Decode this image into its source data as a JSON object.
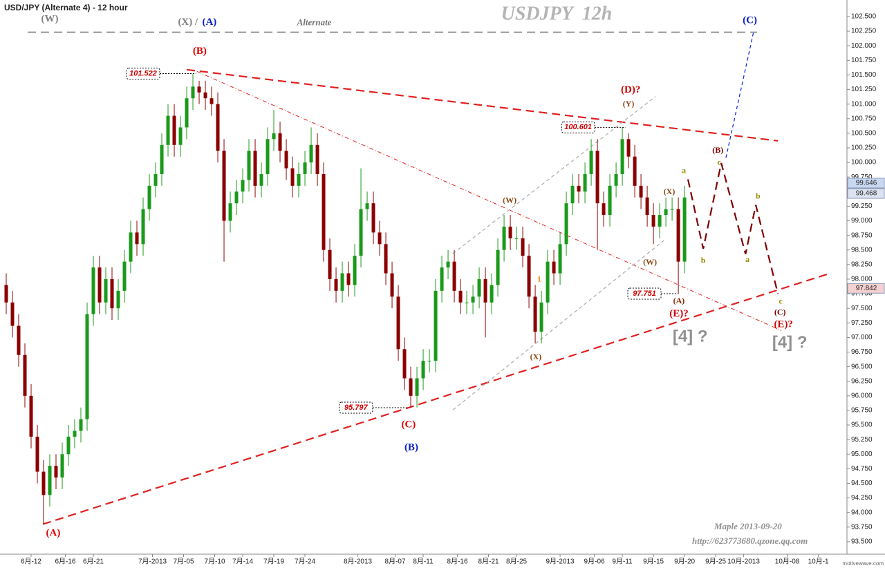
{
  "chart_data": {
    "type": "candlestick",
    "title": "USD/JPY (Alternate 4) - 12 hour",
    "subtitle": "USDJPY  12h",
    "footer": "motivewave.com",
    "up_color": "#1a9a1a",
    "down_color": "#8b0000",
    "xlim": [
      -2,
      270.2
    ],
    "ylim": [
      93.286,
      102.784
    ],
    "xticks": [
      {
        "value": 8,
        "label": "6月-12"
      },
      {
        "value": 19,
        "label": "6月-16"
      },
      {
        "value": 28,
        "label": "6月-21"
      },
      {
        "value": 47,
        "label": "7月-2013"
      },
      {
        "value": 57,
        "label": "7月-05"
      },
      {
        "value": 67,
        "label": "7月-10"
      },
      {
        "value": 76,
        "label": "7月-14"
      },
      {
        "value": 86,
        "label": "7月-19"
      },
      {
        "value": 96,
        "label": "7月-24"
      },
      {
        "value": 113,
        "label": "8月-2013"
      },
      {
        "value": 125,
        "label": "8月-07"
      },
      {
        "value": 134,
        "label": "8月-11"
      },
      {
        "value": 145,
        "label": "8月-16"
      },
      {
        "value": 155,
        "label": "8月-21"
      },
      {
        "value": 164,
        "label": "8月-25"
      },
      {
        "value": 178,
        "label": "9月-2013"
      },
      {
        "value": 189,
        "label": "9月-06"
      },
      {
        "value": 198,
        "label": "9月-11"
      },
      {
        "value": 208,
        "label": "9月-15"
      },
      {
        "value": 218,
        "label": "9月-20"
      },
      {
        "value": 228,
        "label": "9月-25"
      },
      {
        "value": 237,
        "label": "10月-2013"
      },
      {
        "value": 251,
        "label": "10月-08"
      },
      {
        "value": 261,
        "label": "10月-1"
      }
    ],
    "yticks": [
      {
        "value": 93.5,
        "label": "93.500"
      },
      {
        "value": 93.75,
        "label": "93.750"
      },
      {
        "value": 94,
        "label": "94.000"
      },
      {
        "value": 94.25,
        "label": "94.250"
      },
      {
        "value": 94.5,
        "label": "94.500"
      },
      {
        "value": 94.75,
        "label": "94.750"
      },
      {
        "value": 95,
        "label": "95.000"
      },
      {
        "value": 95.25,
        "label": "95.250"
      },
      {
        "value": 95.5,
        "label": "95.500"
      },
      {
        "value": 95.75,
        "label": "95.750"
      },
      {
        "value": 96,
        "label": "96.000"
      },
      {
        "value": 96.25,
        "label": "96.250"
      },
      {
        "value": 96.5,
        "label": "96.500"
      },
      {
        "value": 96.75,
        "label": "96.750"
      },
      {
        "value": 97,
        "label": "97.000"
      },
      {
        "value": 97.25,
        "label": "97.250"
      },
      {
        "value": 97.5,
        "label": "97.500"
      },
      {
        "value": 97.75,
        "label": "97.750"
      },
      {
        "value": 98,
        "label": "98.000"
      },
      {
        "value": 98.25,
        "label": "98.250"
      },
      {
        "value": 98.5,
        "label": "98.500"
      },
      {
        "value": 98.75,
        "label": "98.750"
      },
      {
        "value": 99,
        "label": "99.000"
      },
      {
        "value": 99.25,
        "label": "99.250"
      },
      {
        "value": 99.5,
        "label": "99.500"
      },
      {
        "value": 99.75,
        "label": "99.750"
      },
      {
        "value": 100,
        "label": "100.000"
      },
      {
        "value": 100.25,
        "label": "100.250"
      },
      {
        "value": 100.5,
        "label": "100.500"
      },
      {
        "value": 100.75,
        "label": "100.750"
      },
      {
        "value": 101,
        "label": "101.000"
      },
      {
        "value": 101.25,
        "label": "101.250"
      },
      {
        "value": 101.5,
        "label": "101.500"
      },
      {
        "value": 101.75,
        "label": "101.750"
      },
      {
        "value": 102,
        "label": "102.000"
      },
      {
        "value": 102.25,
        "label": "102.250"
      },
      {
        "value": 102.5,
        "label": "102.500"
      }
    ],
    "x": [
      0,
      2,
      4,
      6,
      8,
      10,
      12,
      14,
      16,
      18,
      20,
      22,
      24,
      26,
      28,
      30,
      32,
      34,
      36,
      38,
      40,
      42,
      44,
      46,
      48,
      50,
      52,
      54,
      56,
      58,
      60,
      62,
      64,
      66,
      68,
      70,
      72,
      74,
      76,
      78,
      80,
      82,
      84,
      86,
      88,
      90,
      92,
      94,
      96,
      98,
      100,
      102,
      104,
      106,
      108,
      110,
      112,
      114,
      116,
      118,
      120,
      122,
      124,
      126,
      128,
      130,
      132,
      134,
      136,
      138,
      140,
      142,
      144,
      146,
      148,
      150,
      152,
      154,
      156,
      158,
      160,
      162,
      164,
      166,
      168,
      170,
      172,
      174,
      176,
      178,
      180,
      182,
      184,
      186,
      188,
      190,
      192,
      194,
      196,
      198,
      200,
      202,
      204,
      206,
      208,
      210,
      212,
      214,
      216,
      218
    ],
    "open": [
      97.9,
      97.6,
      97.2,
      96.7,
      96.0,
      95.3,
      94.7,
      94.3,
      94.8,
      94.6,
      95.0,
      95.3,
      95.4,
      95.6,
      97.4,
      98.2,
      97.6,
      98.0,
      97.5,
      97.8,
      98.3,
      98.8,
      98.6,
      99.2,
      99.6,
      99.8,
      100.3,
      100.8,
      100.3,
      100.6,
      101.1,
      101.3,
      101.2,
      101.1,
      101.0,
      100.2,
      99.0,
      99.3,
      99.5,
      99.7,
      100.2,
      99.6,
      99.8,
      100.4,
      100.5,
      100.2,
      99.9,
      99.6,
      99.8,
      100.0,
      100.3,
      99.8,
      98.5,
      98.0,
      97.8,
      98.1,
      97.9,
      98.4,
      99.2,
      99.3,
      98.8,
      98.6,
      98.1,
      97.7,
      96.8,
      96.3,
      96.0,
      96.3,
      96.6,
      96.6,
      97.8,
      98.2,
      98.3,
      97.8,
      97.6,
      97.6,
      97.7,
      98.0,
      97.6,
      97.9,
      98.5,
      98.9,
      98.7,
      98.7,
      98.4,
      97.7,
      97.1,
      97.6,
      98.3,
      98.1,
      98.6,
      99.3,
      99.6,
      99.5,
      99.8,
      100.2,
      99.3,
      99.1,
      99.6,
      99.8,
      100.4,
      100.1,
      99.6,
      99.4,
      99.1,
      98.9,
      99.1,
      99.2,
      99.2,
      98.3
    ],
    "high": [
      98.1,
      97.8,
      97.4,
      96.9,
      96.2,
      95.5,
      94.9,
      95.0,
      95.0,
      95.2,
      95.5,
      95.6,
      95.8,
      97.6,
      98.4,
      98.4,
      98.2,
      98.2,
      98.0,
      98.5,
      99.0,
      99.0,
      99.4,
      99.8,
      100.0,
      100.5,
      101.0,
      101.0,
      100.8,
      101.3,
      101.522,
      101.4,
      101.4,
      101.3,
      101.2,
      100.4,
      99.5,
      99.7,
      99.9,
      100.4,
      100.4,
      100.0,
      100.6,
      100.9,
      100.7,
      100.4,
      100.1,
      100.0,
      100.2,
      100.6,
      100.5,
      100.0,
      98.7,
      98.2,
      98.3,
      98.3,
      98.6,
      99.9,
      99.5,
      99.5,
      99.0,
      98.8,
      98.3,
      97.9,
      97.0,
      96.5,
      96.5,
      96.8,
      96.8,
      98.0,
      98.4,
      98.5,
      98.5,
      98.0,
      97.8,
      97.9,
      98.2,
      98.2,
      98.1,
      98.7,
      99.1,
      99.1,
      98.9,
      98.9,
      98.6,
      97.9,
      97.8,
      98.5,
      98.5,
      98.8,
      99.5,
      99.8,
      99.8,
      100.0,
      100.4,
      100.4,
      99.5,
      99.8,
      100.0,
      100.601,
      100.5,
      100.3,
      99.8,
      99.6,
      99.3,
      99.3,
      99.4,
      99.4,
      99.4,
      99.6
    ],
    "low": [
      97.4,
      97.0,
      96.5,
      95.8,
      95.1,
      94.5,
      93.8,
      94.1,
      94.4,
      94.4,
      94.8,
      95.1,
      95.2,
      95.4,
      97.2,
      97.4,
      97.4,
      97.3,
      97.3,
      97.6,
      98.1,
      98.4,
      98.4,
      99.0,
      99.4,
      99.6,
      100.1,
      100.1,
      100.1,
      100.4,
      100.9,
      101.0,
      100.9,
      100.8,
      100.0,
      98.3,
      98.8,
      99.1,
      99.3,
      99.5,
      99.4,
      99.4,
      99.6,
      100.2,
      100.0,
      99.7,
      99.4,
      99.4,
      99.6,
      99.8,
      99.6,
      98.3,
      97.8,
      97.6,
      97.6,
      97.7,
      97.7,
      98.2,
      99.0,
      98.6,
      98.4,
      97.9,
      97.5,
      96.6,
      96.1,
      95.797,
      95.8,
      96.1,
      96.4,
      96.4,
      97.6,
      98.0,
      97.6,
      97.4,
      97.4,
      97.4,
      97.5,
      97.0,
      97.4,
      97.7,
      98.3,
      98.5,
      98.5,
      98.2,
      97.5,
      96.9,
      96.9,
      97.4,
      97.9,
      97.9,
      98.4,
      99.1,
      99.3,
      99.3,
      99.6,
      98.5,
      98.9,
      98.9,
      99.4,
      99.6,
      99.9,
      99.4,
      99.2,
      98.9,
      98.6,
      98.7,
      98.9,
      99.0,
      97.751,
      98.1
    ],
    "close": [
      97.6,
      97.2,
      96.7,
      96.0,
      95.3,
      94.7,
      94.3,
      94.8,
      94.6,
      95.0,
      95.3,
      95.4,
      95.6,
      97.4,
      98.2,
      97.6,
      98.0,
      97.5,
      97.8,
      98.3,
      98.8,
      98.6,
      99.2,
      99.6,
      99.8,
      100.3,
      100.8,
      100.3,
      100.6,
      101.1,
      101.3,
      101.2,
      101.1,
      101.0,
      100.2,
      99.0,
      99.3,
      99.5,
      99.7,
      100.2,
      99.6,
      99.8,
      100.4,
      100.5,
      100.2,
      99.9,
      99.6,
      99.8,
      100.0,
      100.3,
      99.8,
      98.5,
      98.0,
      97.8,
      98.1,
      97.9,
      98.4,
      99.2,
      99.3,
      98.8,
      98.6,
      98.1,
      97.7,
      96.8,
      96.3,
      96.0,
      96.3,
      96.6,
      96.6,
      97.8,
      98.2,
      98.3,
      97.8,
      97.6,
      97.6,
      97.7,
      98.0,
      97.6,
      97.9,
      98.5,
      98.9,
      98.7,
      98.7,
      98.4,
      97.7,
      97.1,
      97.6,
      98.3,
      98.1,
      98.6,
      99.3,
      99.6,
      99.5,
      99.8,
      100.2,
      99.3,
      99.1,
      99.6,
      99.8,
      100.4,
      100.1,
      99.6,
      99.4,
      99.1,
      98.9,
      99.1,
      99.2,
      99.2,
      98.3,
      99.4
    ],
    "price_tags": [
      {
        "value": 99.646,
        "color": "#c8d8f0"
      },
      {
        "value": 99.468,
        "color": "#dde3f0"
      },
      {
        "value": 97.842,
        "color": "#f5d0d0"
      }
    ],
    "price_boxes": [
      {
        "label": "101.522",
        "value": 101.522,
        "x": 44,
        "to": 61
      },
      {
        "label": "100.601",
        "value": 100.601,
        "x": 183.8,
        "to": 199
      },
      {
        "label": "95.797",
        "value": 95.797,
        "x": 112.4,
        "to": 129
      },
      {
        "label": "97.751",
        "value": 97.751,
        "x": 205.1,
        "to": 216
      }
    ],
    "lines": [
      {
        "style": "thick-dash",
        "color": "#e02020",
        "x": [
          58,
          248
        ],
        "y": [
          101.59,
          100.37
        ]
      },
      {
        "style": "thick-dash",
        "color": "#e02020",
        "x": [
          11.8,
          264.2
        ],
        "y": [
          93.8,
          98.09
        ]
      },
      {
        "style": "dash-dot",
        "color": "#e02020",
        "x": [
          61.3,
          249.1
        ],
        "y": [
          101.56,
          97.12
        ]
      },
      {
        "style": "dash",
        "color": "#b0b0b0",
        "x": [
          143.6,
          208.7
        ],
        "y": [
          98.44,
          101.13
        ]
      },
      {
        "style": "dash",
        "color": "#b0b0b0",
        "x": [
          143.6,
          211.3
        ],
        "y": [
          95.76,
          98.66
        ]
      },
      {
        "style": "thick-dash",
        "color": "#a0a0a0",
        "x": [
          6.9,
          241.3
        ],
        "y": [
          102.23,
          102.23
        ]
      },
      {
        "style": "dash",
        "color": "#1030e0",
        "x": [
          231.3,
          240.2
        ],
        "y": [
          100.08,
          102.24
        ]
      },
      {
        "style": "thick-dash",
        "color": "#800000",
        "x": [
          219.1,
          224,
          229.8,
          237.6,
          240.9,
          248
        ],
        "y": [
          99.71,
          98.52,
          99.99,
          98.43,
          99.27,
          97.75
        ]
      }
    ],
    "annotations": [
      {
        "text": "(W)",
        "x": 14,
        "y": 102.45,
        "color": "#808080",
        "style": "wave"
      },
      {
        "text": "(X) /",
        "x": 58.4,
        "y": 102.4,
        "color": "#808080",
        "style": "wave"
      },
      {
        "text": "(A)",
        "x": 65.3,
        "y": 102.4,
        "color": "#0a22c8",
        "style": "wave"
      },
      {
        "text": "Alternate",
        "x": 99,
        "y": 102.39,
        "color": "#707070",
        "style": "note"
      },
      {
        "text": "(C)",
        "x": 239,
        "y": 102.43,
        "color": "#0a22c8",
        "style": "wave"
      },
      {
        "text": "(B)",
        "x": 62.2,
        "y": 101.9,
        "color": "#e00000",
        "style": "wave"
      },
      {
        "text": "(D)?",
        "x": 200.7,
        "y": 101.24,
        "color": "#d00000",
        "style": "wave"
      },
      {
        "text": "(Y)",
        "x": 200,
        "y": 100.99,
        "color": "#8b4513",
        "style": "small"
      },
      {
        "text": "(W)",
        "x": 161.8,
        "y": 99.34,
        "color": "#8b4513",
        "style": "small"
      },
      {
        "text": "1",
        "x": 171.3,
        "y": 97.99,
        "color": "#ff8c00",
        "style": "small"
      },
      {
        "text": "(X)",
        "x": 170.2,
        "y": 96.66,
        "color": "#8b4513",
        "style": "small"
      },
      {
        "text": "(W)",
        "x": 206.9,
        "y": 98.28,
        "color": "#8b4513",
        "style": "small"
      },
      {
        "text": "(X)",
        "x": 213.1,
        "y": 99.49,
        "color": "#8b4513",
        "style": "small"
      },
      {
        "text": "(A)",
        "x": 216.2,
        "y": 97.62,
        "color": "#8b2500",
        "style": "small"
      },
      {
        "text": "(E)?",
        "x": 216.2,
        "y": 97.4,
        "color": "#d00000",
        "style": "wave"
      },
      {
        "text": "[4] ?",
        "x": 219.8,
        "y": 97.0,
        "color": "#909090",
        "style": "big"
      },
      {
        "text": "(C)",
        "x": 129.3,
        "y": 95.5,
        "color": "#e00000",
        "style": "wave"
      },
      {
        "text": "(B)",
        "x": 130.2,
        "y": 95.11,
        "color": "#0a22c8",
        "style": "wave"
      },
      {
        "text": "(A)",
        "x": 15.1,
        "y": 93.64,
        "color": "#e00000",
        "style": "wave"
      },
      {
        "text": "a",
        "x": 217.8,
        "y": 99.85,
        "color": "#9a8a00",
        "style": "small"
      },
      {
        "text": "b",
        "x": 224,
        "y": 98.31,
        "color": "#9a8a00",
        "style": "small"
      },
      {
        "text": "(B)",
        "x": 228.7,
        "y": 100.2,
        "color": "#800000",
        "style": "small"
      },
      {
        "text": "c",
        "x": 229.1,
        "y": 99.99,
        "color": "#9a8a00",
        "style": "small"
      },
      {
        "text": "a",
        "x": 238.2,
        "y": 98.33,
        "color": "#9a8a00",
        "style": "small"
      },
      {
        "text": "b",
        "x": 241.6,
        "y": 99.41,
        "color": "#9a8a00",
        "style": "small"
      },
      {
        "text": "c",
        "x": 248.9,
        "y": 97.61,
        "color": "#9a8a00",
        "style": "small"
      },
      {
        "text": "(C)",
        "x": 248.7,
        "y": 97.42,
        "color": "#800000",
        "style": "small"
      },
      {
        "text": "(E)?",
        "x": 249.8,
        "y": 97.22,
        "color": "#d00000",
        "style": "wave"
      },
      {
        "text": "[4] ?",
        "x": 251.8,
        "y": 96.9,
        "color": "#909090",
        "style": "big"
      },
      {
        "text": "Maple 2013-09-20",
        "x": 238.4,
        "y": 93.75,
        "color": "#909090",
        "style": "note"
      },
      {
        "text": "http://623773680.qzone.qq.com",
        "x": 239,
        "y": 93.5,
        "color": "#909090",
        "style": "note"
      }
    ]
  }
}
